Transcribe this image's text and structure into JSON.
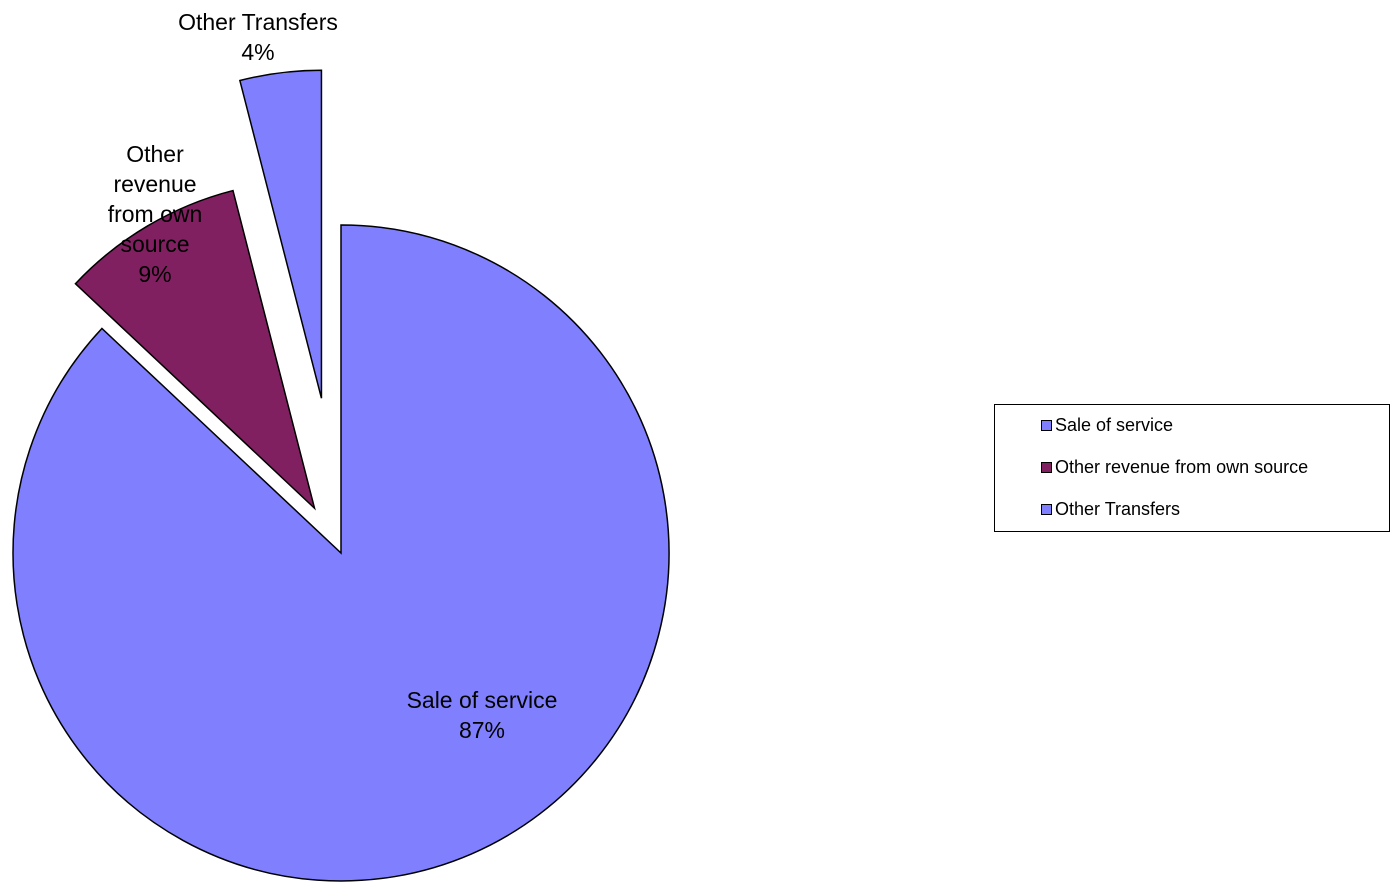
{
  "chart_data": {
    "type": "pie",
    "exploded": true,
    "start_angle_deg": 0,
    "direction": "clockwise",
    "slices": [
      {
        "label": "Sale of service",
        "value": 87,
        "percent_label": "87%",
        "color": "#8080ff"
      },
      {
        "label": "Other revenue from own source",
        "value": 9,
        "percent_label": "9%",
        "color": "#802060"
      },
      {
        "label": "Other Transfers",
        "value": 4,
        "percent_label": "4%",
        "color": "#8080ff"
      }
    ],
    "slice_label_lines": [
      [
        "Sale of service",
        "87%"
      ],
      [
        "Other",
        "revenue",
        "from own",
        "source",
        "9%"
      ],
      [
        "Other Transfers",
        "4%"
      ]
    ],
    "legend": {
      "position": "right",
      "entries": [
        "Sale of service",
        "Other revenue from own source",
        "Other Transfers"
      ]
    }
  }
}
